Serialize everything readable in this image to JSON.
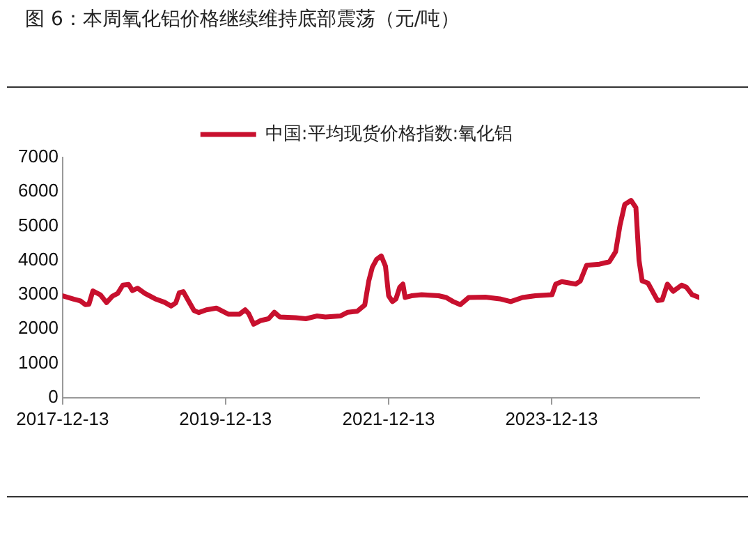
{
  "chart_data": {
    "type": "line",
    "title": "图 6：本周氧化铝价格继续维持底部震荡（元/吨）",
    "legend": "top",
    "grid": false,
    "marker": "none",
    "line_style": "solid",
    "xlim": [
      "2017-12-13",
      "2025-10-05"
    ],
    "xticks": [
      "2017-12-13",
      "2019-12-13",
      "2021-12-13",
      "2023-12-13"
    ],
    "ylim": [
      0,
      7000
    ],
    "yticks": [
      0,
      1000,
      2000,
      3000,
      4000,
      5000,
      6000,
      7000
    ],
    "x": [
      "2017-12-13",
      "2018-02-01",
      "2018-03-03",
      "2018-03-25",
      "2018-04-10",
      "2018-04-28",
      "2018-05-31",
      "2018-06-28",
      "2018-07-25",
      "2018-08-17",
      "2018-09-09",
      "2018-10-05",
      "2018-10-22",
      "2018-11-14",
      "2018-12-17",
      "2019-02-01",
      "2019-03-15",
      "2019-04-13",
      "2019-05-04",
      "2019-05-20",
      "2019-06-07",
      "2019-06-26",
      "2019-07-25",
      "2019-08-15",
      "2019-09-18",
      "2019-11-02",
      "2019-12-27",
      "2020-02-13",
      "2020-03-10",
      "2020-03-26",
      "2020-04-17",
      "2020-05-20",
      "2020-06-23",
      "2020-07-19",
      "2020-08-13",
      "2020-10-22",
      "2020-12-07",
      "2021-01-25",
      "2021-03-05",
      "2021-05-10",
      "2021-06-13",
      "2021-07-26",
      "2021-08-28",
      "2021-09-15",
      "2021-10-01",
      "2021-10-20",
      "2021-11-10",
      "2021-11-29",
      "2021-12-13",
      "2021-12-30",
      "2022-01-15",
      "2022-02-01",
      "2022-02-15",
      "2022-02-25",
      "2022-03-25",
      "2022-05-10",
      "2022-07-25",
      "2022-08-28",
      "2022-09-28",
      "2022-10-30",
      "2022-12-07",
      "2023-02-20",
      "2023-04-25",
      "2023-06-13",
      "2023-08-05",
      "2023-10-01",
      "2023-12-15",
      "2024-01-01",
      "2024-01-28",
      "2024-03-30",
      "2024-04-20",
      "2024-05-18",
      "2024-07-15",
      "2024-08-28",
      "2024-09-25",
      "2024-10-15",
      "2024-11-05",
      "2024-12-03",
      "2024-12-25",
      "2025-01-08",
      "2025-01-22",
      "2025-02-17",
      "2025-04-01",
      "2025-04-22",
      "2025-05-15",
      "2025-06-10",
      "2025-07-18",
      "2025-08-08",
      "2025-09-03",
      "2025-10-05"
    ],
    "series": [
      {
        "name": "中国:平均现货价格指数:氧化铝",
        "color": "#c8102e",
        "values": [
          2970,
          2870,
          2820,
          2710,
          2720,
          3110,
          3000,
          2770,
          2960,
          3040,
          3280,
          3300,
          3120,
          3190,
          3040,
          2880,
          2780,
          2670,
          2760,
          3060,
          3090,
          2870,
          2540,
          2480,
          2560,
          2610,
          2430,
          2430,
          2560,
          2450,
          2140,
          2250,
          2300,
          2490,
          2350,
          2330,
          2300,
          2380,
          2350,
          2380,
          2490,
          2520,
          2700,
          3400,
          3800,
          4030,
          4130,
          3830,
          2970,
          2800,
          2880,
          3220,
          3310,
          2920,
          2970,
          3000,
          2970,
          2920,
          2800,
          2710,
          2920,
          2930,
          2880,
          2800,
          2920,
          2970,
          3000,
          3310,
          3380,
          3310,
          3400,
          3860,
          3890,
          3960,
          4250,
          5030,
          5630,
          5750,
          5540,
          4000,
          3400,
          3340,
          2830,
          2850,
          3310,
          3100,
          3280,
          3220,
          3000,
          2920
        ]
      }
    ]
  }
}
